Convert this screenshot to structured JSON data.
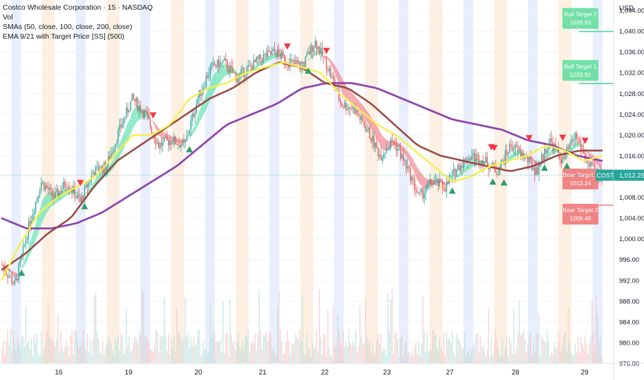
{
  "legend": {
    "title": "Costco Wholesale Corporation · 15 · NASDAQ",
    "vol": "Vol",
    "sma": "SMAs (50, close, 100, close, 200, close)",
    "ema": "EMA 9/21 with Target Price [SS] (500)"
  },
  "colors": {
    "up": "#26a69a",
    "down": "#ef5350",
    "ema_fill_up": "#69e3b4",
    "ema_fill_down": "#f28b96",
    "sma50": "#f6f04a",
    "sma100": "#9a4a45",
    "sma200": "#8e44ad",
    "bull": "#72e0a7",
    "bear": "#f08585",
    "band_blue": "#e8eefc",
    "band_orange": "#fdf0e2"
  },
  "chart_data": {
    "type": "candlestick",
    "yaxis_label": "USD",
    "ylim": [
      976,
      1046
    ],
    "yticks": [
      "976.00",
      "980.00",
      "984.00",
      "988.00",
      "992.00",
      "996.00",
      "1,000.00",
      "1,004.00",
      "1,008.00",
      "1,012.00",
      "1,016.00",
      "1,020.00",
      "1,024.00",
      "1,028.00",
      "1,032.00",
      "1,036.00",
      "1,040.00",
      "1,044.00"
    ],
    "xticks": [
      "16",
      "19",
      "20",
      "21",
      "22",
      "23",
      "27",
      "28",
      "29"
    ],
    "price_path": [
      995,
      991,
      1002,
      1011,
      1008,
      1011,
      1007,
      1013,
      1014,
      1021,
      1027,
      1024,
      1018,
      1019,
      1018,
      1027,
      1033,
      1034,
      1031,
      1033,
      1035,
      1036,
      1034,
      1033,
      1038,
      1033,
      1026,
      1025,
      1021,
      1016,
      1019,
      1014,
      1008,
      1011,
      1010,
      1014,
      1016,
      1015,
      1013,
      1018,
      1016,
      1013,
      1019,
      1015,
      1020,
      1014,
      1012
    ],
    "sma50": [
      992,
      999,
      1005,
      1008,
      1010,
      1012,
      1016,
      1020,
      1020,
      1022,
      1027,
      1029,
      1030,
      1032,
      1033,
      1034,
      1033,
      1032,
      1028,
      1025,
      1022,
      1020,
      1017,
      1014,
      1011,
      1012,
      1014,
      1015,
      1016,
      1018,
      1017,
      1015,
      1016
    ],
    "sma100": [
      994,
      997,
      1001,
      1004,
      1010,
      1015,
      1018,
      1021,
      1024,
      1027,
      1029,
      1032,
      1034,
      1033,
      1030,
      1029,
      1026,
      1022,
      1018,
      1016,
      1015,
      1014,
      1013,
      1014,
      1016,
      1017,
      1017
    ],
    "sma200": [
      1004,
      1002,
      1002,
      1003,
      1005,
      1008,
      1011,
      1014,
      1018,
      1022,
      1024,
      1026,
      1029,
      1030,
      1030,
      1029,
      1027,
      1025,
      1023,
      1022,
      1021,
      1019,
      1018,
      1016,
      1015
    ],
    "last_price": {
      "label": "COST",
      "value": "1,012.25",
      "price": 1012.25
    },
    "targets": [
      {
        "name": "Bull Target 2",
        "value": "1039.93",
        "price": 1039.93,
        "kind": "bull"
      },
      {
        "name": "Bull Target 1",
        "value": "1029.91",
        "price": 1029.91,
        "kind": "bull"
      },
      {
        "name": "Bear Target 1",
        "value": "1013.24",
        "price": 1013.24,
        "kind": "bear"
      },
      {
        "name": "Bear Target 2",
        "value": "1006.48",
        "price": 1006.48,
        "kind": "bear"
      }
    ],
    "bands": [
      "blue",
      "orange",
      "blue",
      "orange",
      "blue",
      "orange",
      "blue",
      "orange",
      "blue",
      "orange",
      "blue",
      "orange",
      "blue",
      "orange",
      "blue",
      "orange",
      "blue",
      "orange",
      "blue"
    ]
  }
}
